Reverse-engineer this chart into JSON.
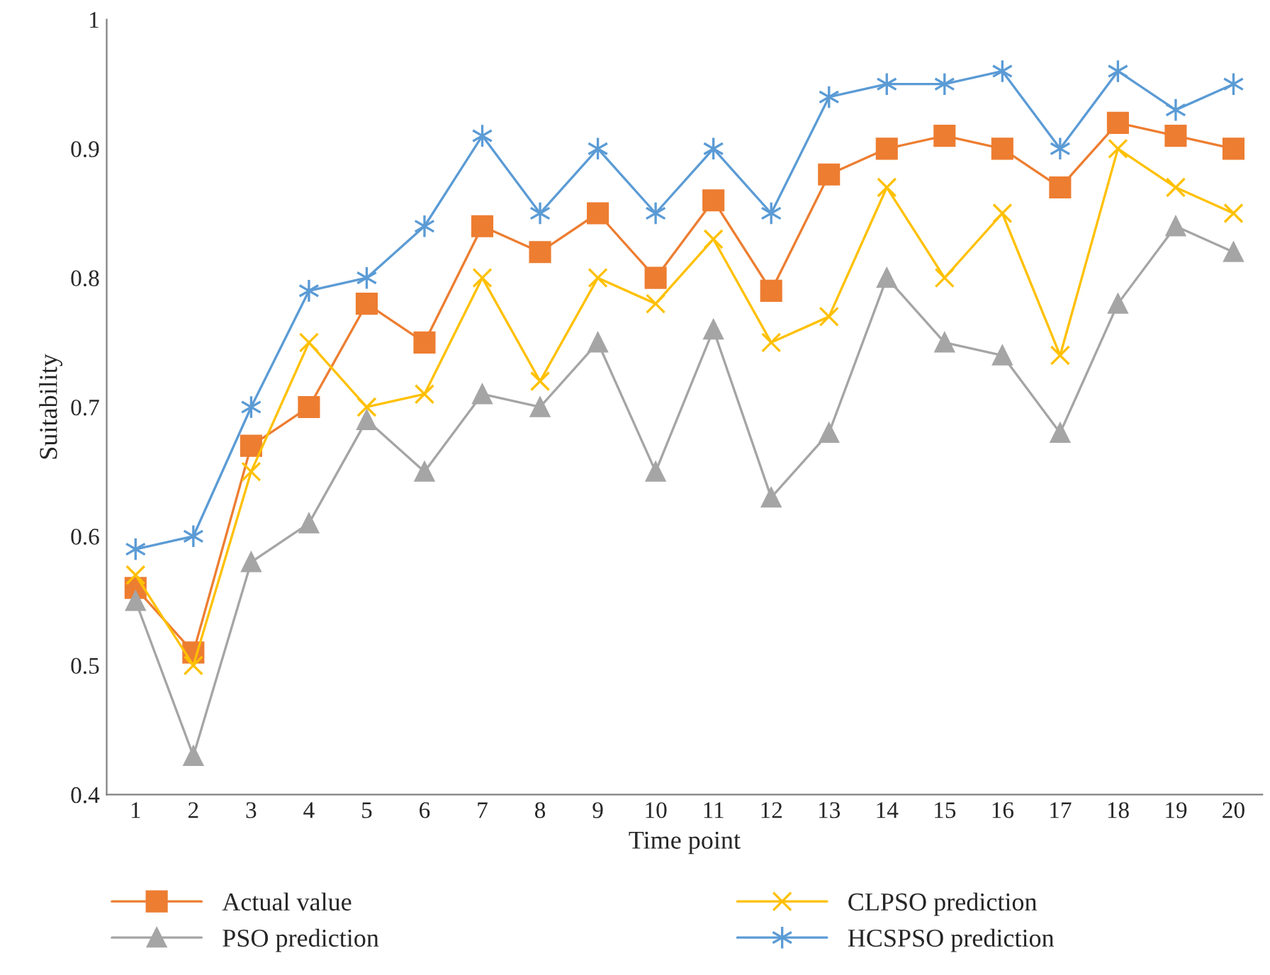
{
  "chart_data": {
    "type": "line",
    "xlabel": "Time point",
    "ylabel": "Suitability",
    "categories": [
      "1",
      "2",
      "3",
      "4",
      "5",
      "6",
      "7",
      "8",
      "9",
      "10",
      "11",
      "12",
      "13",
      "14",
      "15",
      "16",
      "17",
      "18",
      "19",
      "20"
    ],
    "series": [
      {
        "name": "Actual value",
        "color": "#ed7d31",
        "marker": "square",
        "values": [
          0.56,
          0.51,
          0.67,
          0.7,
          0.78,
          0.75,
          0.84,
          0.82,
          0.85,
          0.8,
          0.86,
          0.79,
          0.88,
          0.9,
          0.91,
          0.9,
          0.87,
          0.92,
          0.91,
          0.9
        ]
      },
      {
        "name": "PSO prediction",
        "color": "#a5a5a5",
        "marker": "triangle",
        "values": [
          0.55,
          0.43,
          0.58,
          0.61,
          0.69,
          0.65,
          0.71,
          0.7,
          0.75,
          0.65,
          0.76,
          0.63,
          0.68,
          0.8,
          0.75,
          0.74,
          0.68,
          0.78,
          0.84,
          0.82
        ]
      },
      {
        "name": "CLPSO prediction",
        "color": "#ffc000",
        "marker": "cross",
        "values": [
          0.57,
          0.5,
          0.65,
          0.75,
          0.7,
          0.71,
          0.8,
          0.72,
          0.8,
          0.78,
          0.83,
          0.75,
          0.77,
          0.87,
          0.8,
          0.85,
          0.74,
          0.9,
          0.87,
          0.85
        ]
      },
      {
        "name": "HCSPSO prediction",
        "color": "#5b9bd5",
        "marker": "cross",
        "values": [
          0.59,
          0.6,
          0.7,
          0.79,
          0.8,
          0.84,
          0.91,
          0.85,
          0.9,
          0.85,
          0.9,
          0.85,
          0.94,
          0.95,
          0.95,
          0.96,
          0.9,
          0.96,
          0.93,
          0.95
        ]
      }
    ],
    "ylim": [
      0.4,
      1
    ],
    "yticks": [
      0.4,
      0.5,
      0.6,
      0.7,
      0.8,
      0.9,
      1
    ],
    "grid": false,
    "legend": "bottom",
    "line_style": "solid"
  }
}
